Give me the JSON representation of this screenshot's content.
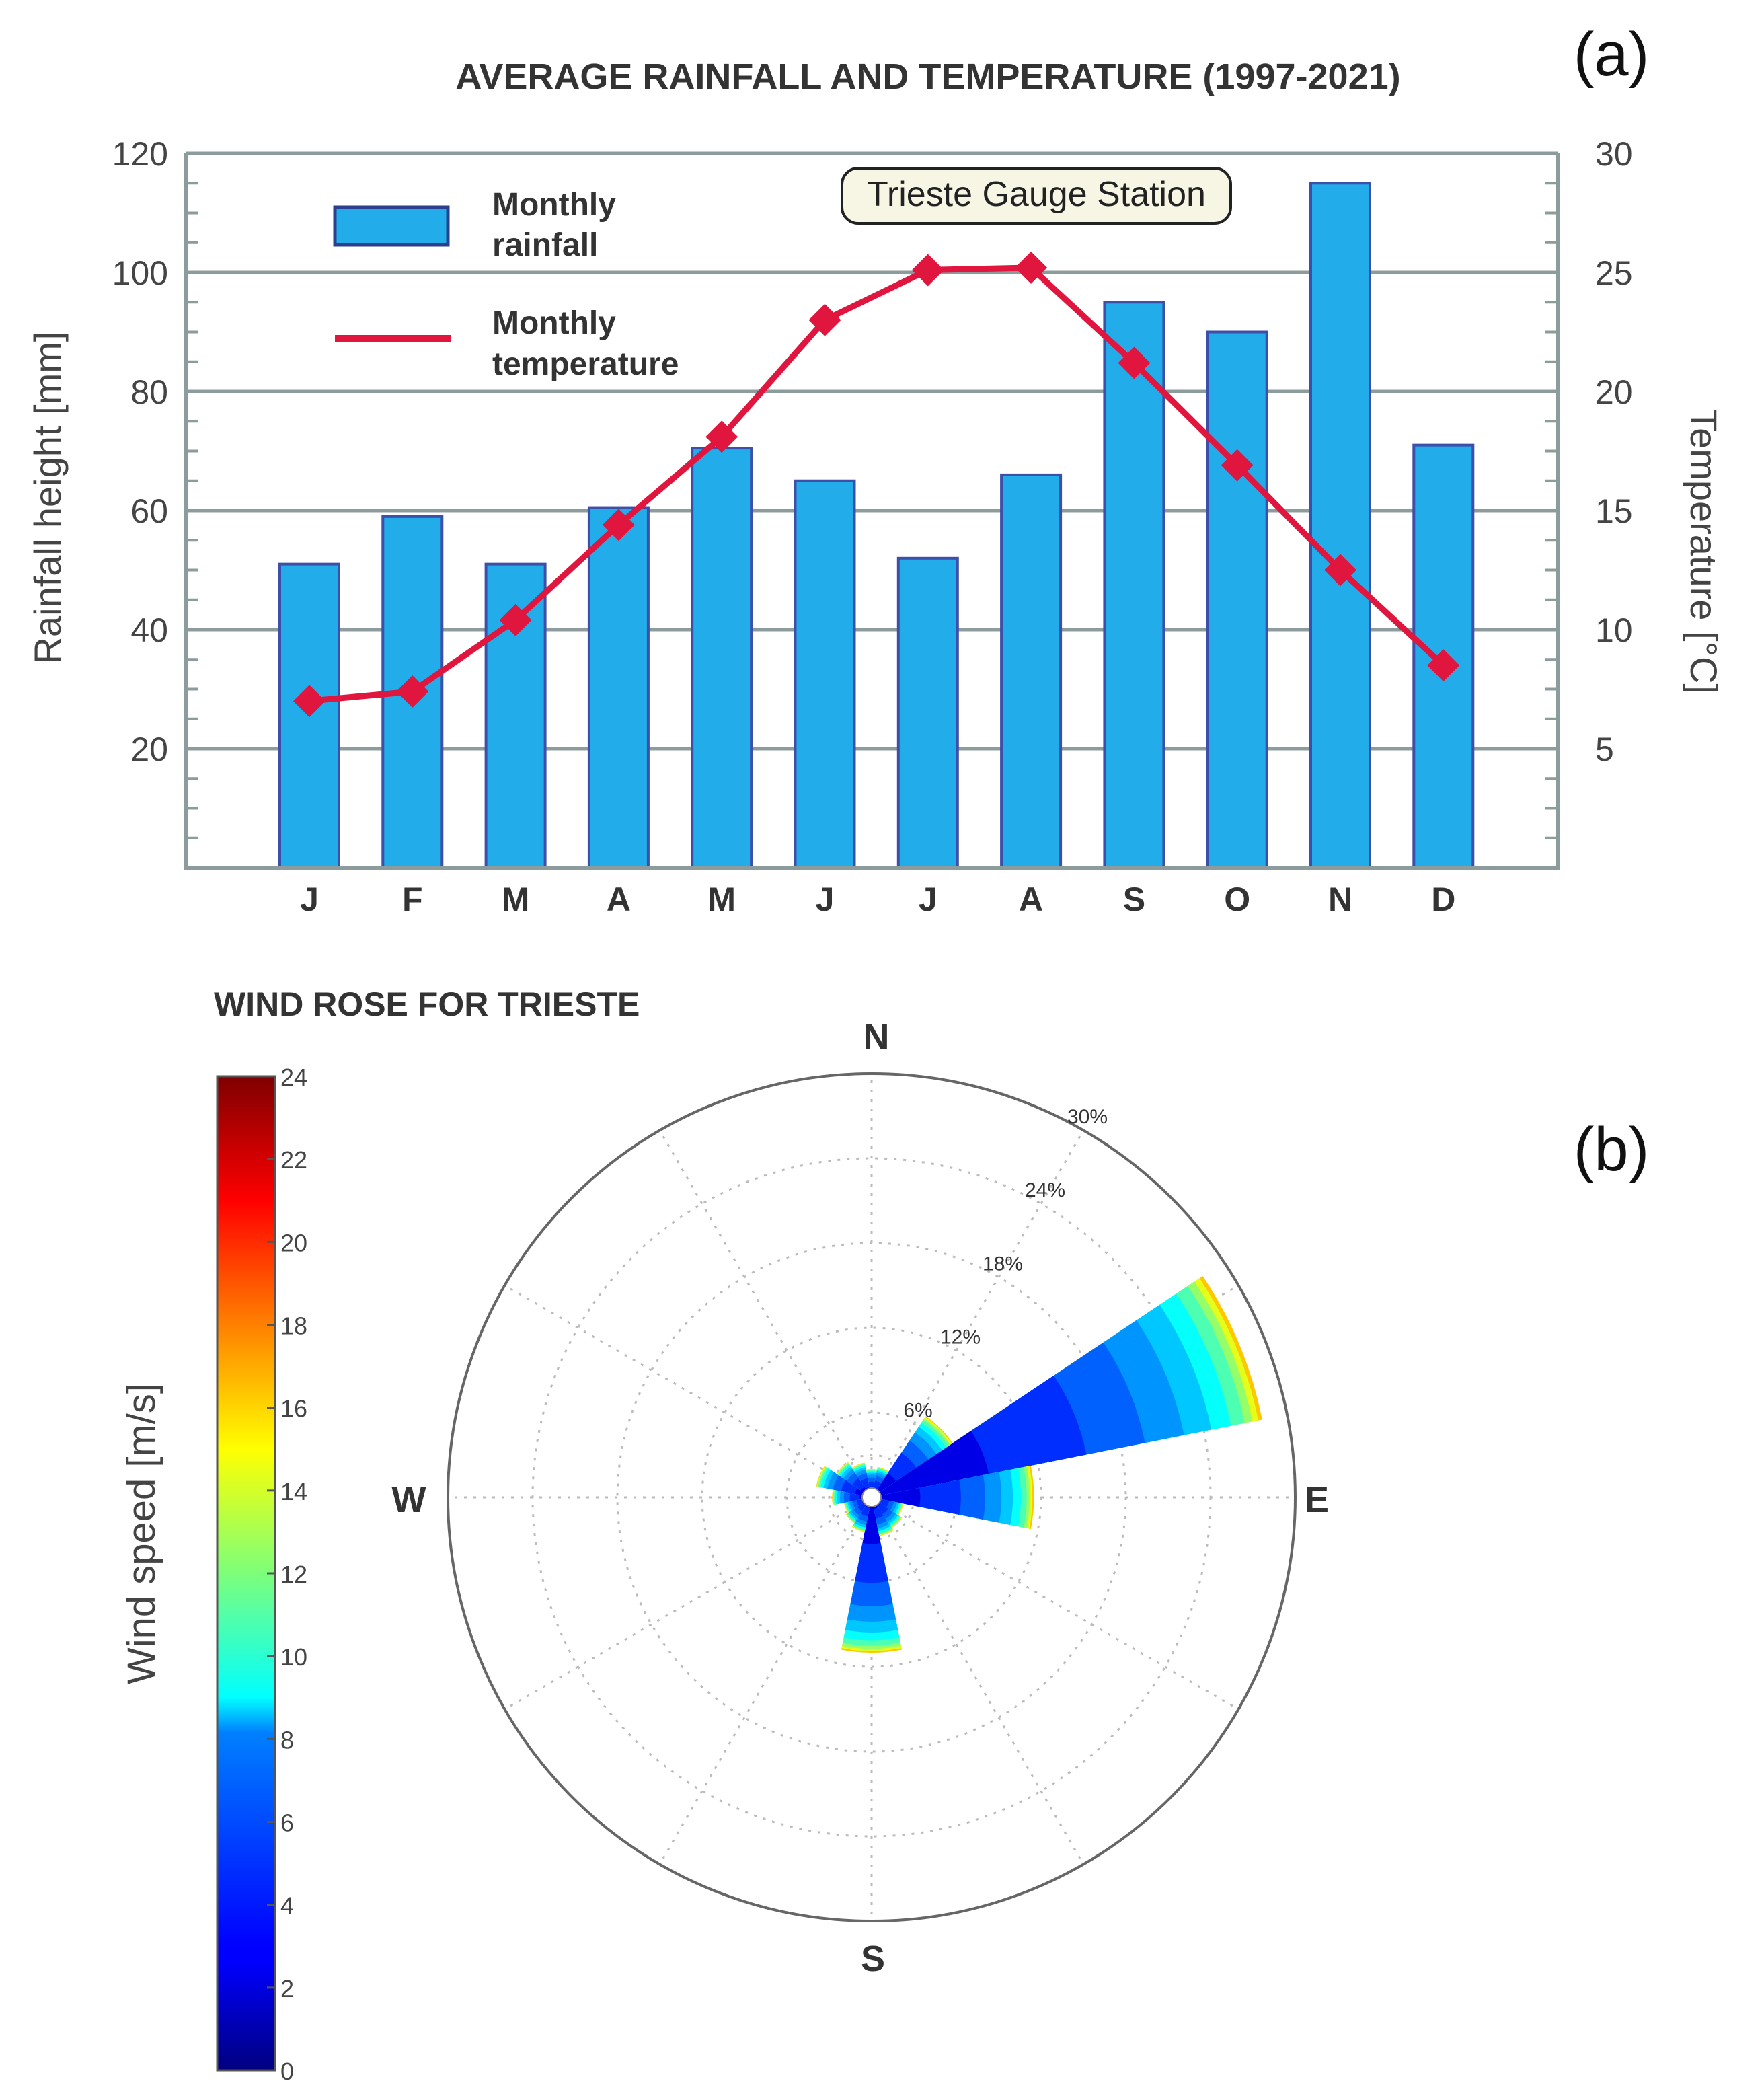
{
  "panel_labels": {
    "a": "(a)",
    "b": "(b)"
  },
  "chart_data": [
    {
      "type": "bar+line",
      "title": "AVERAGE RAINFALL AND TEMPERATURE (1997-2021)",
      "annotation": "Trieste Gauge Station",
      "categories": [
        "J",
        "F",
        "M",
        "A",
        "M",
        "J",
        "J",
        "A",
        "S",
        "O",
        "N",
        "D"
      ],
      "series": [
        {
          "name": "Monthly rainfall",
          "legend": [
            "Monthly",
            "rainfall"
          ],
          "type": "bar",
          "axis": "left",
          "values": [
            51,
            59,
            51,
            60.5,
            70.5,
            65,
            52,
            66,
            95,
            90,
            115,
            71
          ]
        },
        {
          "name": "Monthly temperature",
          "legend": [
            "Monthly",
            "temperature"
          ],
          "type": "line",
          "axis": "right",
          "values": [
            7.0,
            7.4,
            10.4,
            14.4,
            18.1,
            23.0,
            25.1,
            25.2,
            21.2,
            16.9,
            12.5,
            8.5
          ]
        }
      ],
      "ylabel_left": "Rainfall height [mm]",
      "ylabel_right": "Temperature [°C]",
      "ylim_left": [
        0,
        120
      ],
      "ylim_right": [
        0,
        30
      ],
      "yticks_left": [
        "20",
        "40",
        "60",
        "80",
        "100",
        "120"
      ],
      "yticks_right": [
        "5",
        "10",
        "15",
        "20",
        "25",
        "30"
      ],
      "grid": true,
      "colors": {
        "bar": "#22adea",
        "bar_edge": "#3d4fa8",
        "line": "#e0163f",
        "grid": "#8c9c9c"
      }
    },
    {
      "type": "windrose",
      "title": "WIND ROSE FOR TRIESTE",
      "directions": [
        "N",
        "E",
        "S",
        "W"
      ],
      "radial_ticks": [
        "6%",
        "12%",
        "18%",
        "24%",
        "30%"
      ],
      "radial_max_percent": 30,
      "sectors": [
        {
          "direction_deg": 67.5,
          "frequency_percent": 28.2
        },
        {
          "direction_deg": 90,
          "frequency_percent": 11.5
        },
        {
          "direction_deg": 45,
          "frequency_percent": 6.9
        },
        {
          "direction_deg": 180,
          "frequency_percent": 11.0
        },
        {
          "direction_deg": 292.5,
          "frequency_percent": 4.0
        },
        {
          "direction_deg": 315,
          "frequency_percent": 3.0
        },
        {
          "direction_deg": 337.5,
          "frequency_percent": 2.5
        },
        {
          "direction_deg": 0,
          "frequency_percent": 2.0
        },
        {
          "direction_deg": 22.5,
          "frequency_percent": 2.2
        },
        {
          "direction_deg": 270,
          "frequency_percent": 2.8
        },
        {
          "direction_deg": 247.5,
          "frequency_percent": 2.0
        },
        {
          "direction_deg": 225,
          "frequency_percent": 2.2
        },
        {
          "direction_deg": 202.5,
          "frequency_percent": 2.5
        },
        {
          "direction_deg": 157.5,
          "frequency_percent": 2.8
        },
        {
          "direction_deg": 135,
          "frequency_percent": 2.6
        },
        {
          "direction_deg": 112.5,
          "frequency_percent": 2.3
        }
      ],
      "colorbar": {
        "label": "Wind speed [m/s]",
        "range": [
          0,
          24
        ],
        "ticks": [
          "0",
          "2",
          "4",
          "6",
          "8",
          "10",
          "12",
          "14",
          "16",
          "18",
          "20",
          "22",
          "24"
        ]
      }
    }
  ]
}
